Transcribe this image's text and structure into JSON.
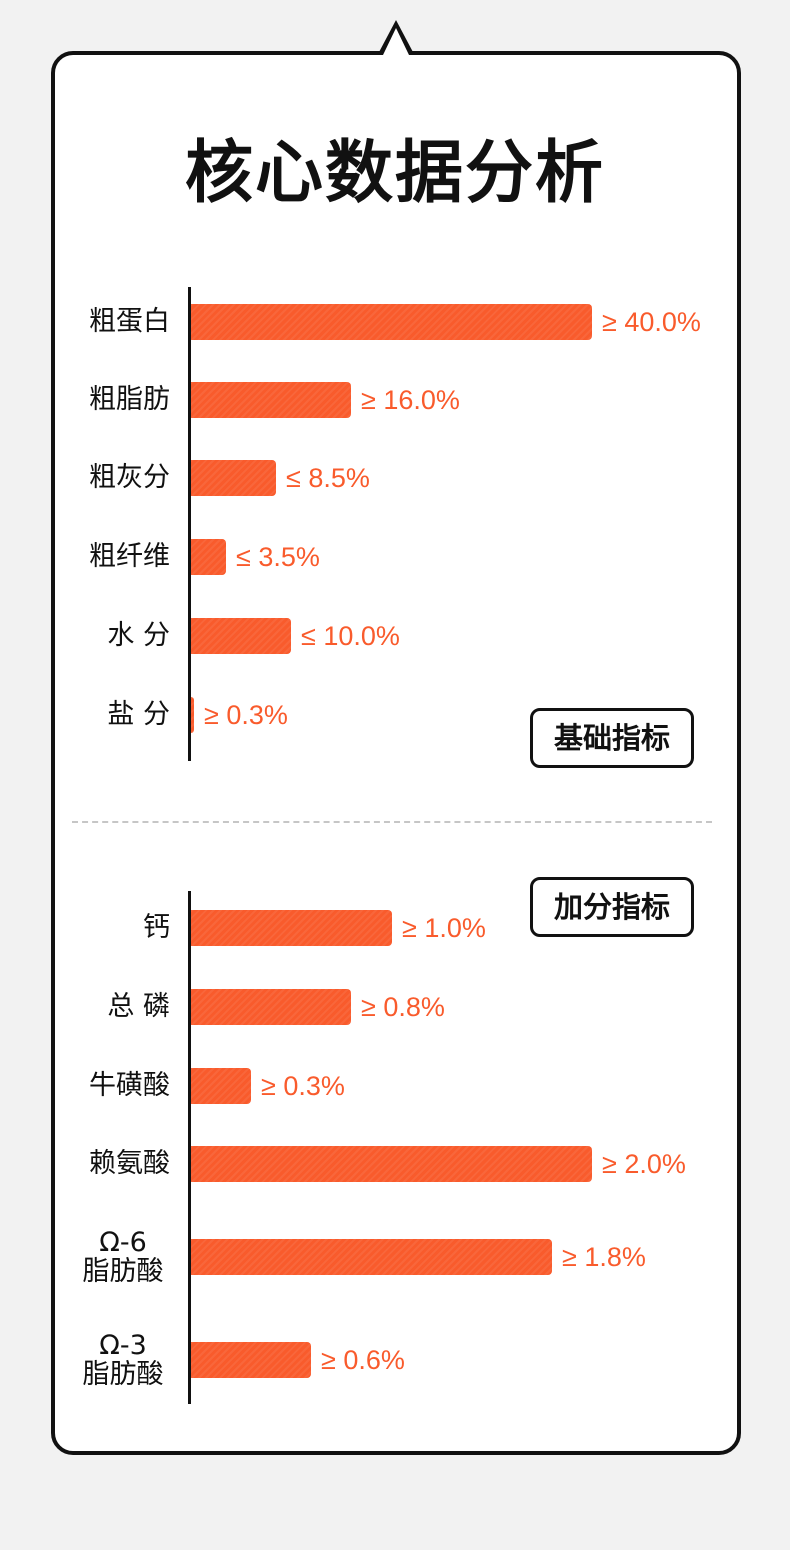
{
  "title": "核心数据分析",
  "colors": {
    "bar": "#f95b2c",
    "text": "#111111",
    "background": "#f2f2f2"
  },
  "chart_data": [
    {
      "type": "bar",
      "orientation": "horizontal",
      "tag": "基础指标",
      "categories": [
        "粗蛋白",
        "粗脂肪",
        "粗灰分",
        "粗纤维",
        "水 分",
        "盐 分"
      ],
      "values": [
        40.0,
        16.0,
        8.5,
        3.5,
        10.0,
        0.3
      ],
      "value_labels": [
        "≥ 40.0%",
        "≥ 16.0%",
        "≤ 8.5%",
        "≤ 3.5%",
        "≤ 10.0%",
        "≥ 0.3%"
      ]
    },
    {
      "type": "bar",
      "orientation": "horizontal",
      "tag": "加分指标",
      "categories": [
        "钙",
        "总 磷",
        "牛磺酸",
        "赖氨酸",
        "Ω-6\n脂肪酸",
        "Ω-3\n脂肪酸"
      ],
      "values": [
        1.0,
        0.8,
        0.3,
        2.0,
        1.8,
        0.6
      ],
      "value_labels": [
        "≥ 1.0%",
        "≥ 0.8%",
        "≥ 0.3%",
        "≥ 2.0%",
        "≥ 1.8%",
        "≥ 0.6%"
      ]
    }
  ]
}
